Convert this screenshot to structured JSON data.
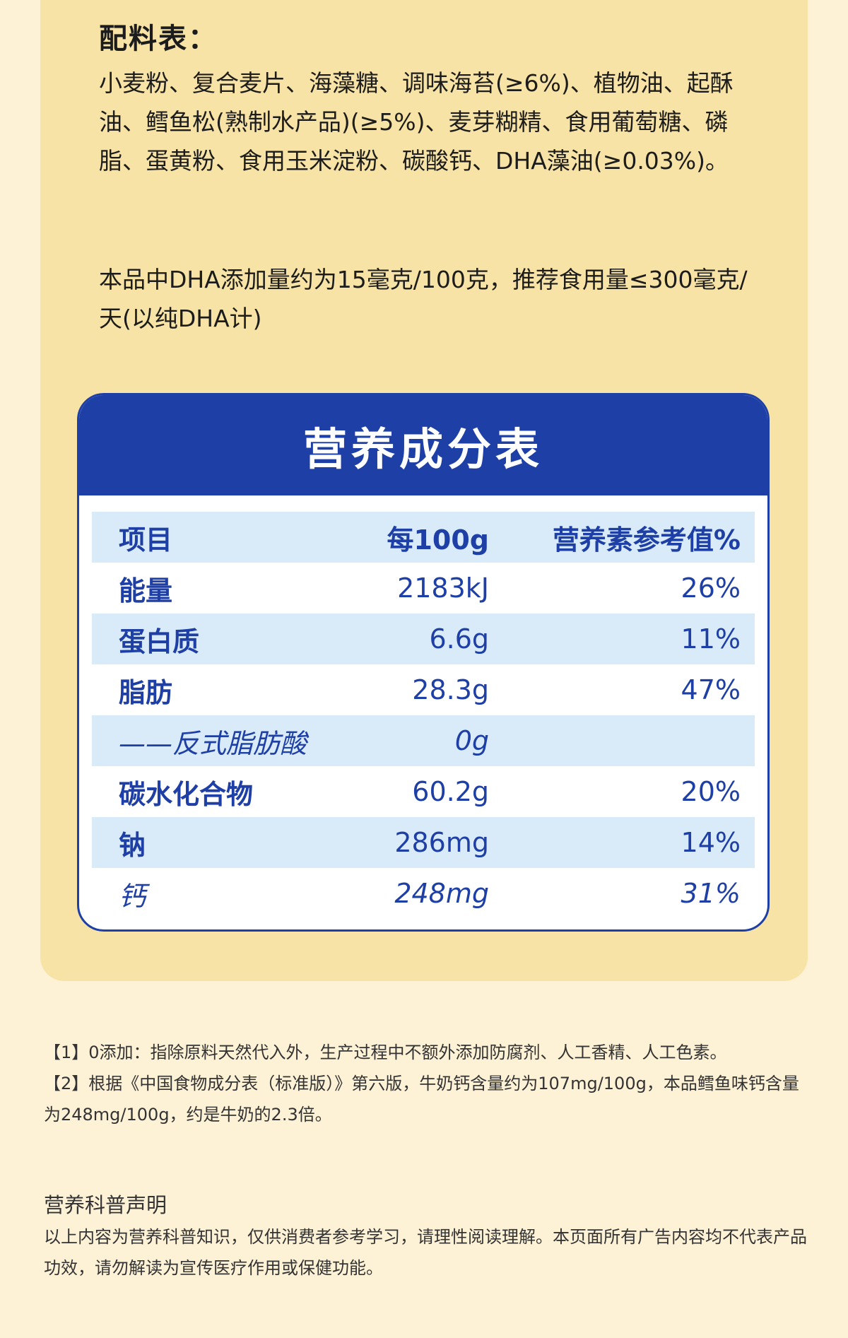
{
  "ingredients": {
    "title": "配料表：",
    "text": "小麦粉、复合麦片、海藻糖、调味海苔(≥6%)、植物油、起酥油、鳕鱼松(熟制水产品)(≥5%)、麦芽糊精、食用葡萄糖、磷脂、蛋黄粉、食用玉米淀粉、碳酸钙、DHA藻油(≥0.03%)。",
    "dha_note": "本品中DHA添加量约为15毫克/100克，推荐食用量≤300毫克/天(以纯DHA计)"
  },
  "nutrition": {
    "title": "营养成分表",
    "header": {
      "item": "项目",
      "per100g": "每100g",
      "nrv": "营养素参考值%"
    },
    "rows": [
      {
        "item": "能量",
        "per100g": "2183kJ",
        "nrv": "26%"
      },
      {
        "item": "蛋白质",
        "per100g": "6.6g",
        "nrv": "11%"
      },
      {
        "item": "脂肪",
        "per100g": "28.3g",
        "nrv": "47%"
      },
      {
        "item": "——反式脂肪酸",
        "per100g": "0g",
        "nrv": ""
      },
      {
        "item": "碳水化合物",
        "per100g": "60.2g",
        "nrv": "20%"
      },
      {
        "item": "钠",
        "per100g": "286mg",
        "nrv": "14%"
      },
      {
        "item": "钙",
        "per100g": "248mg",
        "nrv": "31%"
      }
    ]
  },
  "footnotes": {
    "note1": "【1】0添加：指除原料天然代入外，生产过程中不额外添加防腐剂、人工香精、人工色素。",
    "note2": "【2】根据《中国食物成分表（标准版）》第六版，牛奶钙含量约为107mg/100g，本品鳕鱼味钙含量为248mg/100g，约是牛奶的2.3倍。"
  },
  "declaration": {
    "title": "营养科普声明",
    "text": "以上内容为营养科普知识，仅供消费者参考学习，请理性阅读理解。本页面所有广告内容均不代表产品功效，请勿解读为宣传医疗作用或保健功能。"
  },
  "colors": {
    "brand_blue": "#1e3fa6",
    "row_alt": "#d9ebf9",
    "card": "#f8e3a6",
    "page": "#fdf1d6"
  }
}
